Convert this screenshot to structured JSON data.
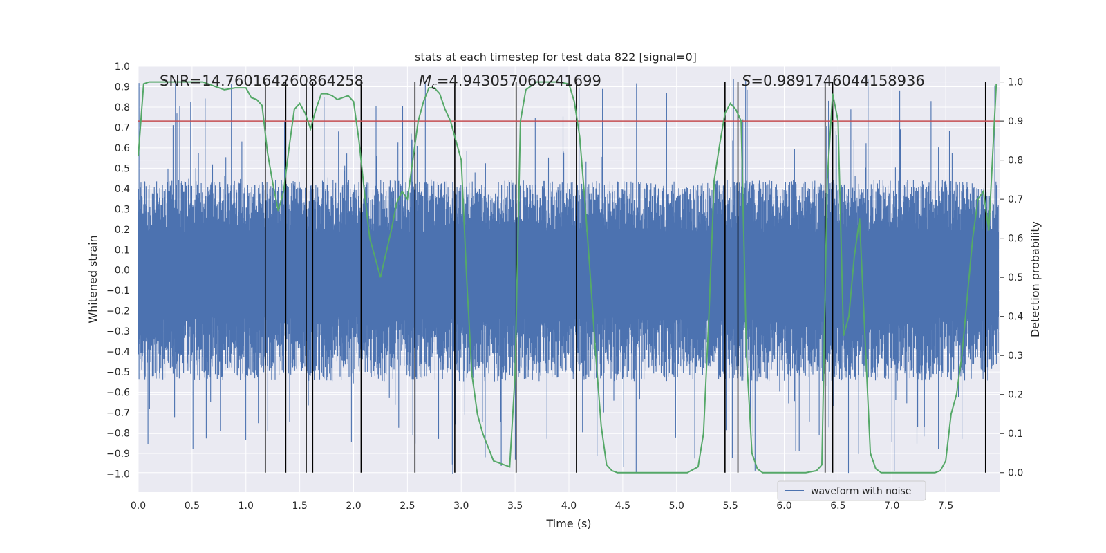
{
  "chart_data": {
    "type": "line",
    "title": "stats at each timestep for test data 822 [signal=0]",
    "xlabel": "Time (s)",
    "ylabel_left": "Whitened strain",
    "ylabel_right": "Detection probability",
    "xlim": [
      0.0,
      8.0
    ],
    "ylim_left": [
      -1.09,
      1.0
    ],
    "ylim_right": [
      -0.05,
      1.04
    ],
    "x_ticks": [
      "0.0",
      "0.5",
      "1.0",
      "1.5",
      "2.0",
      "2.5",
      "3.0",
      "3.5",
      "4.0",
      "4.5",
      "5.0",
      "5.5",
      "6.0",
      "6.5",
      "7.0",
      "7.5"
    ],
    "y_left_ticks": [
      "1.0",
      "0.9",
      "0.8",
      "0.7",
      "0.6",
      "0.5",
      "0.4",
      "0.3",
      "0.2",
      "0.1",
      "0.0",
      "−0.1",
      "−0.2",
      "−0.3",
      "−0.4",
      "−0.5",
      "−0.6",
      "−0.7",
      "−0.8",
      "−0.9",
      "−1.0"
    ],
    "y_right_ticks": [
      "1.0",
      "0.9",
      "0.8",
      "0.7",
      "0.6",
      "0.5",
      "0.4",
      "0.3",
      "0.2",
      "0.1",
      "0.0"
    ],
    "annotations": {
      "snr": "SNR=14.760164260864258",
      "mc_symbol": "M",
      "mc_sub": "c",
      "mc_value": "=4.943057060241699",
      "s_symbol": "S",
      "s_value": "=0.9891746044158936"
    },
    "threshold": {
      "value": 0.9,
      "axis": "right",
      "color": "#c44e52"
    },
    "vertical_lines_x": [
      1.18,
      1.37,
      1.56,
      1.62,
      2.07,
      2.57,
      2.94,
      3.51,
      4.07,
      5.45,
      5.57,
      6.38,
      6.45,
      7.87
    ],
    "series": [
      {
        "name": "waveform with noise",
        "axis": "left",
        "color": "#4c72b0",
        "style": "noise",
        "envelope_typical": [
          -0.42,
          0.34
        ],
        "envelope_extremes": [
          -1.0,
          0.94
        ]
      },
      {
        "name": "detection probability",
        "axis": "right",
        "color": "#55a868",
        "x": [
          0.0,
          0.05,
          0.1,
          0.2,
          0.3,
          0.4,
          0.5,
          0.6,
          0.7,
          0.8,
          0.9,
          1.0,
          1.05,
          1.1,
          1.15,
          1.2,
          1.25,
          1.3,
          1.35,
          1.4,
          1.45,
          1.5,
          1.55,
          1.6,
          1.65,
          1.7,
          1.75,
          1.8,
          1.85,
          1.9,
          1.95,
          2.0,
          2.05,
          2.1,
          2.15,
          2.2,
          2.25,
          2.3,
          2.35,
          2.4,
          2.45,
          2.5,
          2.55,
          2.6,
          2.65,
          2.7,
          2.75,
          2.8,
          2.85,
          2.9,
          2.95,
          3.0,
          3.05,
          3.1,
          3.15,
          3.2,
          3.3,
          3.4,
          3.45,
          3.5,
          3.55,
          3.6,
          3.7,
          3.8,
          3.9,
          4.0,
          4.05,
          4.1,
          4.15,
          4.2,
          4.25,
          4.3,
          4.35,
          4.4,
          4.45,
          4.5,
          4.6,
          4.7,
          4.8,
          4.9,
          5.0,
          5.1,
          5.2,
          5.25,
          5.3,
          5.35,
          5.4,
          5.45,
          5.5,
          5.55,
          5.6,
          5.65,
          5.7,
          5.75,
          5.8,
          5.9,
          6.0,
          6.1,
          6.2,
          6.3,
          6.35,
          6.4,
          6.45,
          6.5,
          6.55,
          6.6,
          6.65,
          6.7,
          6.75,
          6.8,
          6.85,
          6.9,
          7.0,
          7.1,
          7.2,
          7.3,
          7.4,
          7.45,
          7.5,
          7.55,
          7.6,
          7.65,
          7.7,
          7.75,
          7.8,
          7.85,
          7.9,
          7.97
        ],
        "y": [
          0.81,
          0.995,
          1.0,
          1.0,
          1.0,
          1.0,
          1.0,
          1.0,
          0.99,
          0.98,
          0.985,
          0.985,
          0.96,
          0.955,
          0.94,
          0.82,
          0.74,
          0.67,
          0.72,
          0.83,
          0.93,
          0.945,
          0.92,
          0.88,
          0.93,
          0.97,
          0.97,
          0.965,
          0.955,
          0.96,
          0.965,
          0.95,
          0.85,
          0.72,
          0.6,
          0.55,
          0.5,
          0.56,
          0.62,
          0.69,
          0.72,
          0.7,
          0.8,
          0.9,
          0.95,
          0.985,
          0.985,
          0.97,
          0.93,
          0.9,
          0.85,
          0.8,
          0.5,
          0.25,
          0.15,
          0.1,
          0.03,
          0.02,
          0.015,
          0.25,
          0.9,
          0.98,
          1.0,
          1.0,
          1.0,
          0.995,
          0.95,
          0.86,
          0.69,
          0.5,
          0.3,
          0.12,
          0.02,
          0.005,
          0.0,
          0.0,
          0.0,
          0.0,
          0.0,
          0.0,
          0.0,
          0.0,
          0.015,
          0.1,
          0.4,
          0.75,
          0.84,
          0.92,
          0.945,
          0.93,
          0.9,
          0.3,
          0.05,
          0.01,
          0.0,
          0.0,
          0.0,
          0.0,
          0.0,
          0.005,
          0.02,
          0.75,
          0.97,
          0.9,
          0.35,
          0.4,
          0.55,
          0.65,
          0.35,
          0.05,
          0.01,
          0.0,
          0.0,
          0.0,
          0.0,
          0.0,
          0.0,
          0.005,
          0.03,
          0.15,
          0.2,
          0.3,
          0.45,
          0.6,
          0.7,
          0.72,
          0.62,
          0.995
        ]
      }
    ],
    "legend": {
      "entry": "waveform with noise",
      "location": "lower-right"
    }
  }
}
